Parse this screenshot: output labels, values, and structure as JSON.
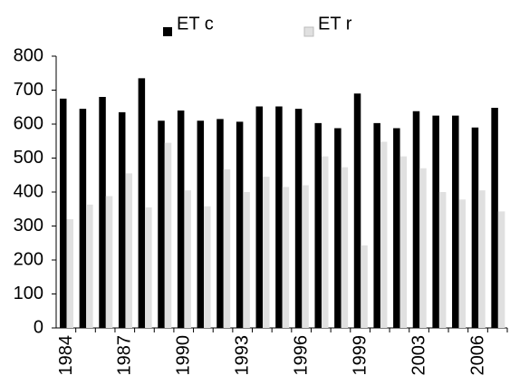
{
  "chart_data": {
    "type": "bar",
    "categories": [
      "1984",
      null,
      null,
      "1987",
      null,
      null,
      "1990",
      null,
      null,
      "1993",
      null,
      null,
      "1996",
      null,
      null,
      "1999",
      null,
      null,
      "2003",
      null,
      null,
      "2006",
      null
    ],
    "series": [
      {
        "name": "ET c",
        "color": "#000000",
        "values": [
          675,
          645,
          680,
          635,
          735,
          610,
          640,
          610,
          615,
          607,
          652,
          652,
          645,
          603,
          588,
          690,
          603,
          588,
          638,
          625,
          625,
          590,
          648
        ]
      },
      {
        "name": "ET r",
        "color": "#e0e0e0",
        "values": [
          320,
          363,
          388,
          455,
          355,
          545,
          405,
          358,
          467,
          400,
          445,
          415,
          420,
          505,
          473,
          243,
          548,
          505,
          470,
          400,
          378,
          405,
          343
        ]
      }
    ],
    "ylim": [
      0,
      800
    ],
    "yticks": [
      0,
      100,
      200,
      300,
      400,
      500,
      600,
      700,
      800
    ],
    "grid": false,
    "legend": "top"
  }
}
